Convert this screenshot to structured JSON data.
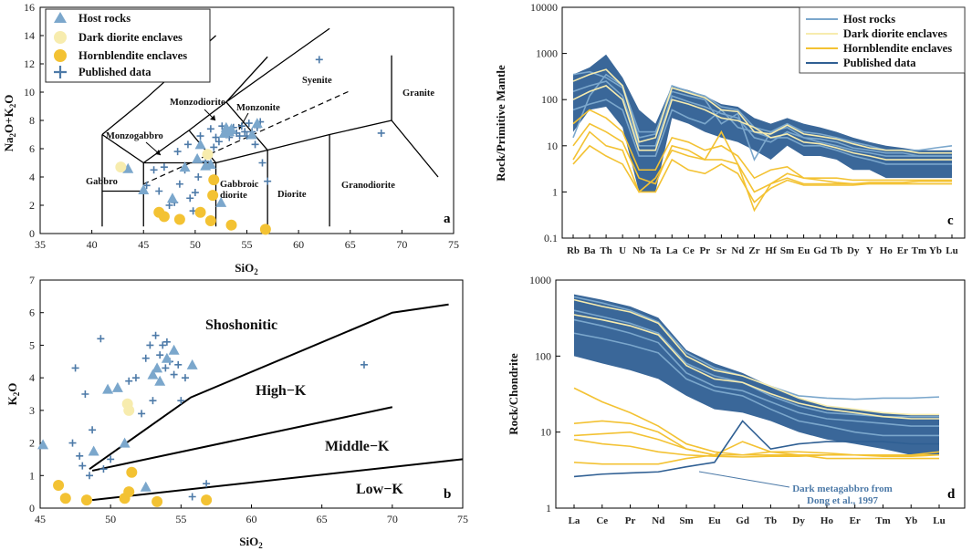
{
  "colors": {
    "host": "#7ba7cc",
    "dark": "#f7ecae",
    "hbl": "#f3c233",
    "published": "#4d7aa8",
    "fill": "#2f5f93"
  },
  "legend": {
    "a": {
      "host": "Host rocks",
      "dark": "Dark diorite enclaves",
      "hbl": "Hornblendite enclaves",
      "published": "Published data"
    },
    "c": {
      "host": "Host rocks",
      "dark": "Dark diorite enclaves",
      "hbl": "Hornblendite enclaves",
      "published": "Published data"
    }
  },
  "chart_data": [
    {
      "id": "a",
      "type": "scatter",
      "panel_label": "a",
      "xlabel": "SiO2",
      "ylabel": "Na2O+K2O",
      "xlim": [
        35,
        75
      ],
      "ylim": [
        0,
        16
      ],
      "xticks": [
        "35",
        "40",
        "45",
        "50",
        "55",
        "60",
        "65",
        "70",
        "75"
      ],
      "yticks": [
        "0",
        "2",
        "4",
        "6",
        "8",
        "10",
        "12",
        "14",
        "16"
      ],
      "fields": [
        "Gabbro",
        "Monzogabbro",
        "Monzodiorite",
        "Monzonite",
        "Syenite",
        "Granite",
        "Gabbroic",
        "diorite",
        "Diorite",
        "Granodiorite"
      ],
      "host": [
        [
          43.5,
          4.6
        ],
        [
          45,
          3.1
        ],
        [
          47.8,
          2.5
        ],
        [
          49,
          4.7
        ],
        [
          50.2,
          5.3
        ],
        [
          50.5,
          6.3
        ],
        [
          51,
          4.8
        ],
        [
          51.5,
          4.9
        ],
        [
          52.5,
          2.2
        ],
        [
          52.8,
          7.1
        ],
        [
          53,
          7.5
        ],
        [
          53.3,
          7.2
        ],
        [
          53.5,
          7.4
        ],
        [
          55.5,
          7.0
        ],
        [
          56,
          7.8
        ]
      ],
      "dark": [
        [
          42.8,
          4.7
        ],
        [
          51.2,
          5.6
        ]
      ],
      "hbl": [
        [
          46.5,
          1.5
        ],
        [
          47,
          1.2
        ],
        [
          48.5,
          1.0
        ],
        [
          50.5,
          1.5
        ],
        [
          51.5,
          0.9
        ],
        [
          51.7,
          2.7
        ],
        [
          51.8,
          3.8
        ],
        [
          53.5,
          0.6
        ],
        [
          56.8,
          0.3
        ]
      ],
      "published": [
        [
          45.3,
          3.4
        ],
        [
          46,
          4.5
        ],
        [
          46.5,
          3.0
        ],
        [
          47,
          4.7
        ],
        [
          47.5,
          2.0
        ],
        [
          48,
          2.2
        ],
        [
          48.3,
          5.8
        ],
        [
          48.5,
          3.5
        ],
        [
          49,
          4.5
        ],
        [
          49.3,
          6.3
        ],
        [
          49.5,
          2.5
        ],
        [
          49.8,
          1.6
        ],
        [
          50,
          2.9
        ],
        [
          50.3,
          4.0
        ],
        [
          50.5,
          6.9
        ],
        [
          51,
          5.1
        ],
        [
          51.5,
          7.4
        ],
        [
          51.8,
          6.1
        ],
        [
          52,
          6.8
        ],
        [
          52.3,
          6.5
        ],
        [
          52.6,
          7.6
        ],
        [
          53,
          7.0
        ],
        [
          53.3,
          6.8
        ],
        [
          53.7,
          7.5
        ],
        [
          54,
          7.1
        ],
        [
          54.3,
          6.9
        ],
        [
          54.5,
          7.6
        ],
        [
          54.8,
          7.2
        ],
        [
          55,
          6.9
        ],
        [
          55.2,
          7.8
        ],
        [
          55.5,
          7.2
        ],
        [
          55.8,
          6.3
        ],
        [
          56,
          7.5
        ],
        [
          56.3,
          7.9
        ],
        [
          56.5,
          5.0
        ],
        [
          57,
          3.7
        ],
        [
          62,
          12.3
        ],
        [
          68,
          7.1
        ]
      ]
    },
    {
      "id": "b",
      "type": "scatter",
      "panel_label": "b",
      "xlabel": "SiO2",
      "ylabel": "K2O",
      "xlim": [
        45,
        75
      ],
      "ylim": [
        0,
        7
      ],
      "xticks": [
        "45",
        "50",
        "55",
        "60",
        "65",
        "70",
        "75"
      ],
      "yticks": [
        "0",
        "1",
        "2",
        "3",
        "4",
        "5",
        "6",
        "7"
      ],
      "fields": [
        "Shoshonitic",
        "High−K",
        "Middle−K",
        "Low−K"
      ],
      "host": [
        [
          45.2,
          1.95
        ],
        [
          48.8,
          1.75
        ],
        [
          49.8,
          3.65
        ],
        [
          50.5,
          3.7
        ],
        [
          51,
          2.0
        ],
        [
          52.5,
          0.65
        ],
        [
          53,
          4.1
        ],
        [
          53.3,
          4.3
        ],
        [
          53.5,
          3.9
        ],
        [
          54,
          4.6
        ],
        [
          54.5,
          4.85
        ],
        [
          55.8,
          4.4
        ]
      ],
      "dark": [
        [
          51.2,
          3.2
        ],
        [
          51.3,
          3.0
        ]
      ],
      "hbl": [
        [
          46.3,
          0.7
        ],
        [
          46.8,
          0.3
        ],
        [
          48.3,
          0.25
        ],
        [
          51,
          0.3
        ],
        [
          51.3,
          0.5
        ],
        [
          51.5,
          1.1
        ],
        [
          53.3,
          0.2
        ],
        [
          56.8,
          0.25
        ]
      ],
      "published": [
        [
          47.5,
          4.3
        ],
        [
          47.3,
          2.0
        ],
        [
          47.8,
          1.6
        ],
        [
          48,
          1.3
        ],
        [
          48.2,
          3.5
        ],
        [
          48.5,
          1.0
        ],
        [
          48.7,
          2.4
        ],
        [
          49.3,
          5.2
        ],
        [
          49.5,
          1.2
        ],
        [
          50,
          1.5
        ],
        [
          51.3,
          3.9
        ],
        [
          51.8,
          4.0
        ],
        [
          52.2,
          2.9
        ],
        [
          52.5,
          4.6
        ],
        [
          52.8,
          5.0
        ],
        [
          53,
          3.3
        ],
        [
          53.2,
          5.3
        ],
        [
          53.5,
          4.7
        ],
        [
          53.7,
          5.0
        ],
        [
          53.9,
          4.3
        ],
        [
          54,
          5.1
        ],
        [
          54.2,
          4.5
        ],
        [
          54.5,
          4.1
        ],
        [
          54.8,
          4.4
        ],
        [
          55,
          3.3
        ],
        [
          55.3,
          4.0
        ],
        [
          55.8,
          0.35
        ],
        [
          56.8,
          0.75
        ],
        [
          68,
          4.4
        ]
      ]
    },
    {
      "id": "c",
      "type": "line",
      "panel_label": "c",
      "yscale": "log",
      "ylabel": "Rock/Primitive Mantle",
      "ylim": [
        0.1,
        10000
      ],
      "yticks": [
        "0.1",
        "1",
        "10",
        "100",
        "1000",
        "10000"
      ],
      "categories": [
        "Rb",
        "Ba",
        "Th",
        "U",
        "Nb",
        "Ta",
        "La",
        "Ce",
        "Pr",
        "Sr",
        "Nd",
        "Zr",
        "Hf",
        "Sm",
        "Eu",
        "Gd",
        "Tb",
        "Dy",
        "Y",
        "Ho",
        "Er",
        "Tm",
        "Yb",
        "Lu"
      ],
      "published_range": {
        "low": [
          20,
          60,
          70,
          25,
          1,
          1,
          40,
          30,
          20,
          15,
          12,
          8,
          5,
          10,
          6,
          6,
          5,
          3,
          3,
          2,
          2,
          2,
          2,
          2
        ],
        "high": [
          350,
          500,
          950,
          300,
          60,
          30,
          200,
          160,
          120,
          80,
          70,
          40,
          30,
          40,
          30,
          25,
          20,
          15,
          12,
          10,
          9,
          8,
          8,
          8
        ]
      },
      "host": [
        [
          350,
          400,
          300,
          180,
          15,
          18,
          200,
          150,
          120,
          70,
          60,
          25,
          20,
          30,
          20,
          18,
          15,
          12,
          10,
          8,
          8,
          8,
          9,
          10
        ],
        [
          150,
          200,
          250,
          120,
          10,
          10,
          120,
          90,
          70,
          50,
          40,
          15,
          12,
          20,
          15,
          12,
          10,
          8,
          7,
          6,
          6,
          6,
          6,
          6
        ],
        [
          60,
          80,
          100,
          60,
          6,
          6,
          60,
          40,
          30,
          60,
          25,
          20,
          15,
          15,
          10,
          10,
          8,
          6,
          5,
          4,
          4,
          4,
          4,
          4
        ],
        [
          15,
          120,
          350,
          200,
          20,
          20,
          150,
          120,
          100,
          30,
          50,
          5,
          20,
          25,
          15,
          14,
          12,
          9,
          8,
          7,
          7,
          6,
          6,
          6
        ]
      ],
      "dark": [
        [
          250,
          350,
          450,
          200,
          12,
          15,
          180,
          140,
          110,
          60,
          55,
          20,
          18,
          28,
          18,
          16,
          14,
          11,
          9,
          8,
          8,
          7,
          7,
          7
        ],
        [
          100,
          150,
          200,
          100,
          8,
          8,
          100,
          80,
          60,
          40,
          35,
          25,
          15,
          18,
          12,
          11,
          9,
          7,
          6,
          5,
          5,
          5,
          5,
          5
        ]
      ],
      "hbl": [
        [
          5,
          20,
          10,
          8,
          1,
          2,
          8,
          6,
          5,
          20,
          4,
          1,
          1.5,
          2,
          1.5,
          1.5,
          1.5,
          1.5,
          1.6,
          1.6,
          1.6,
          1.7,
          1.7,
          1.7
        ],
        [
          4,
          10,
          6,
          4,
          1,
          1,
          5,
          3,
          2.5,
          4,
          2.5,
          0.6,
          1.2,
          1.8,
          1.4,
          1.4,
          1.4,
          1.4,
          1.5,
          1.5,
          1.5,
          1.5,
          1.5,
          1.5
        ],
        [
          30,
          60,
          40,
          20,
          3,
          3,
          15,
          12,
          8,
          10,
          6,
          2,
          3,
          3.5,
          2,
          2,
          2,
          1.8,
          1.8,
          1.8,
          1.8,
          1.8,
          1.8,
          1.8
        ],
        [
          10,
          30,
          20,
          12,
          2,
          1.5,
          10,
          8,
          5,
          5,
          4,
          0.4,
          1.5,
          2.5,
          2,
          1.8,
          1.6,
          1.5,
          1.5,
          1.5,
          1.5,
          1.5,
          1.5,
          1.5
        ]
      ]
    },
    {
      "id": "d",
      "type": "line",
      "panel_label": "d",
      "yscale": "log",
      "ylabel": "Rock/Chondrite",
      "ylim": [
        1,
        1000
      ],
      "yticks": [
        "1",
        "10",
        "100",
        "1000"
      ],
      "categories": [
        "La",
        "Ce",
        "Pr",
        "Nd",
        "Sm",
        "Eu",
        "Gd",
        "Tb",
        "Dy",
        "Ho",
        "Er",
        "Tm",
        "Yb",
        "Lu"
      ],
      "annotation": [
        "Dark metagabbro from",
        "Dong et al., 1997"
      ],
      "published_range": {
        "low": [
          100,
          80,
          65,
          50,
          30,
          20,
          18,
          14,
          10,
          8,
          7,
          6,
          5,
          5
        ],
        "high": [
          650,
          550,
          450,
          320,
          120,
          80,
          60,
          40,
          28,
          22,
          20,
          18,
          17,
          17
        ]
      },
      "dark_metagabbro": [
        2.6,
        2.8,
        2.9,
        3.0,
        3.5,
        4.0,
        14,
        6,
        7,
        7.5,
        7.5,
        7.5,
        7,
        7
      ],
      "host": [
        [
          600,
          500,
          400,
          280,
          110,
          70,
          55,
          40,
          30,
          28,
          27,
          28,
          28,
          29
        ],
        [
          300,
          250,
          200,
          150,
          60,
          40,
          35,
          25,
          18,
          15,
          14,
          13,
          12,
          12
        ],
        [
          200,
          170,
          140,
          110,
          50,
          35,
          30,
          20,
          14,
          12,
          10,
          9,
          9,
          9
        ],
        [
          400,
          330,
          270,
          200,
          80,
          55,
          45,
          30,
          22,
          18,
          17,
          16,
          16,
          16
        ]
      ],
      "dark": [
        [
          550,
          450,
          380,
          270,
          100,
          65,
          55,
          40,
          28,
          22,
          20,
          18,
          17,
          17
        ],
        [
          350,
          300,
          250,
          190,
          75,
          50,
          45,
          32,
          24,
          20,
          18,
          16,
          15,
          15
        ]
      ],
      "hbl": [
        [
          38,
          25,
          18,
          12,
          7,
          5.5,
          5,
          5,
          5,
          5,
          5,
          5,
          5,
          5.5
        ],
        [
          13,
          14,
          13,
          10,
          6,
          5,
          5,
          5,
          5,
          5,
          5,
          5,
          5,
          5
        ],
        [
          8,
          7,
          6.5,
          5.5,
          5,
          4.8,
          4.7,
          4.8,
          4.8,
          5,
          5,
          5,
          5,
          5
        ],
        [
          4,
          3.8,
          3.8,
          3.8,
          4.5,
          5,
          5,
          5.5,
          5.5,
          5.3,
          5,
          4.8,
          4.8,
          5
        ],
        [
          9,
          9.5,
          10,
          8,
          6,
          5,
          7.5,
          5.5,
          5,
          4.5,
          4.5,
          4.5,
          4.5,
          4.5
        ]
      ]
    }
  ]
}
